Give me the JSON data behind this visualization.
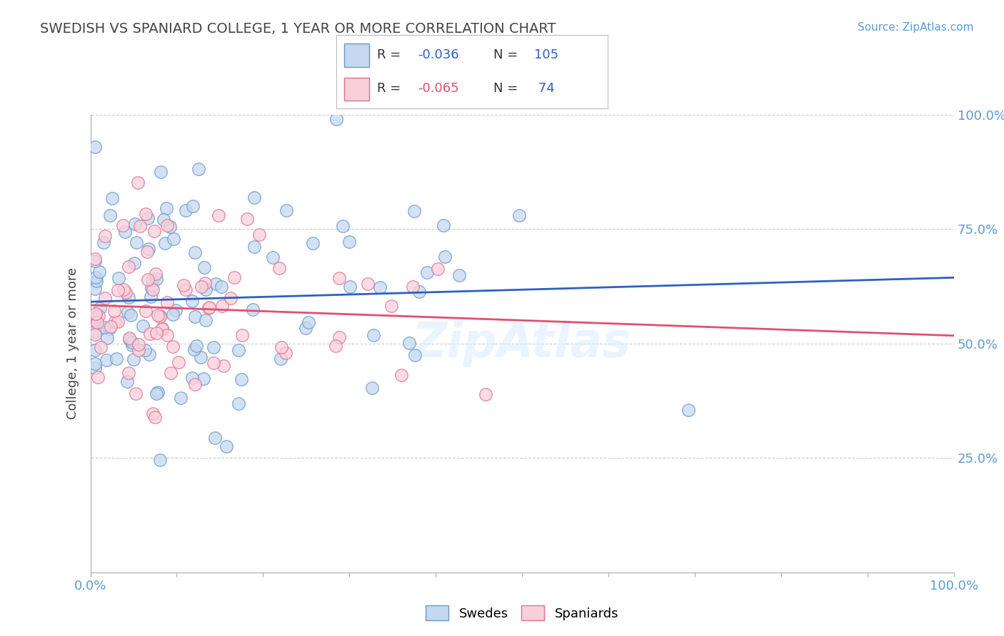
{
  "title": "SWEDISH VS SPANIARD COLLEGE, 1 YEAR OR MORE CORRELATION CHART",
  "source_text": "Source: ZipAtlas.com",
  "ylabel": "College, 1 year or more",
  "xlim": [
    0.0,
    1.0
  ],
  "ylim": [
    0.0,
    1.0
  ],
  "grid_color": "#cccccc",
  "background_color": "#ffffff",
  "swedes_color": "#c5d8f0",
  "swedes_edge": "#6699cc",
  "spaniards_color": "#f9d0da",
  "spaniards_edge": "#e07090",
  "swedes_R": -0.036,
  "swedes_N": 105,
  "spaniards_R": -0.065,
  "spaniards_N": 74,
  "swedes_line_color": "#3060c0",
  "spaniards_line_color": "#e05070",
  "legend_label_swedes": "Swedes",
  "legend_label_spaniards": "Spaniards",
  "r_label_color": "#3060c0",
  "n_label_color": "#3060c0",
  "spaniards_r_label_color": "#e05070",
  "tick_color": "#5b9bd5",
  "title_color": "#444444",
  "source_color": "#5b9bd5"
}
